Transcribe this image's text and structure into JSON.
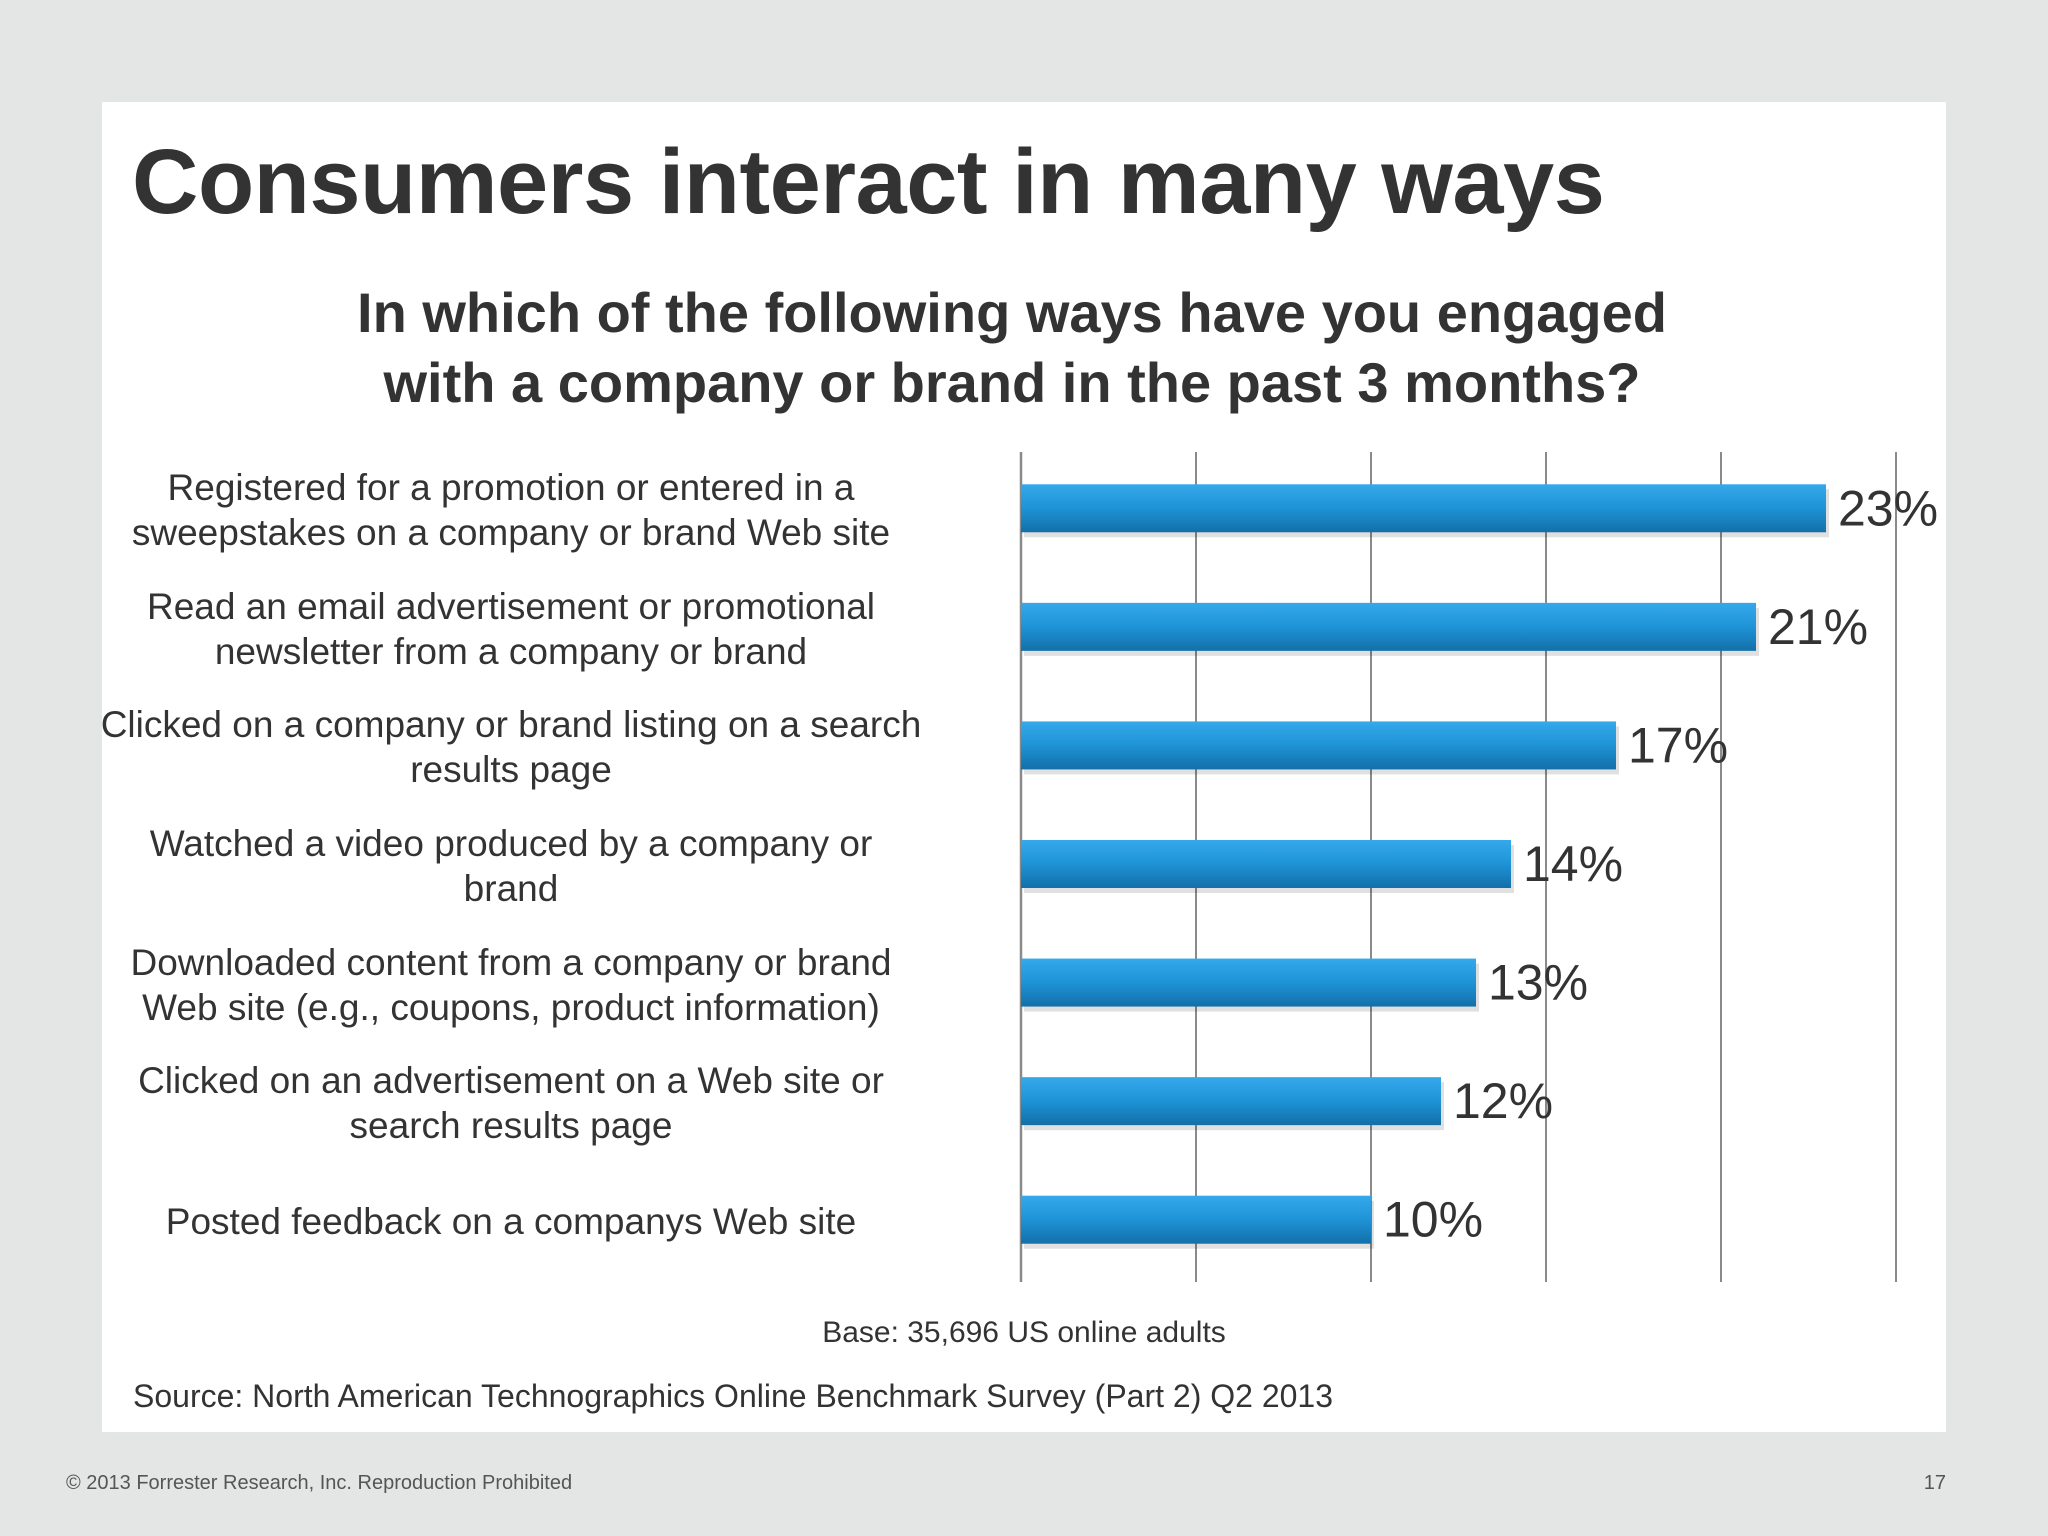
{
  "slide": {
    "title": "Consumers interact in many ways",
    "base_note": "Base: 35,696 US online adults",
    "source_note": "Source: North American Technographics Online Benchmark Survey (Part 2) Q2 2013",
    "copyright": "© 2013 Forrester Research, Inc. Reproduction Prohibited",
    "page_number": "17"
  },
  "chart_data": {
    "type": "bar",
    "orientation": "horizontal",
    "title_lines": [
      "In which of the following ways have you engaged",
      "with a company or brand in the past 3 months?"
    ],
    "categories": [
      [
        "Registered for a promotion or entered in a",
        "sweepstakes on a company or brand Web site"
      ],
      [
        "Read an email advertisement or promotional",
        "newsletter from a company or brand"
      ],
      [
        "Clicked on a company or brand listing on a search",
        "results page"
      ],
      [
        "Watched a video produced by a company or",
        "brand"
      ],
      [
        "Downloaded content from a company or brand",
        "Web site (e.g., coupons, product information)"
      ],
      [
        "Clicked on an advertisement on a Web site or",
        "search results page"
      ],
      [
        "Posted feedback on a companys Web site"
      ]
    ],
    "values": [
      23,
      21,
      17,
      14,
      13,
      12,
      10
    ],
    "data_labels": [
      "23%",
      "21%",
      "17%",
      "14%",
      "13%",
      "12%",
      "10%"
    ],
    "xlim": [
      0,
      25
    ],
    "gridlines": true,
    "x_axis_tick_labels": false,
    "bar_color": "#1e93d6",
    "bar_color_dark": "#1478b4"
  }
}
